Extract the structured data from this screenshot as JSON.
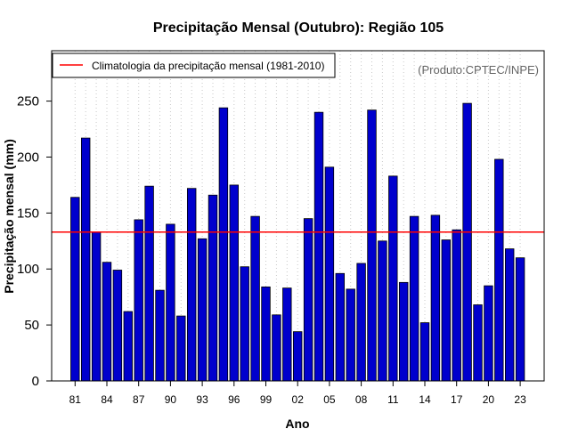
{
  "chart_data": {
    "type": "bar",
    "title": "Precipitação Mensal (Outubro): Região 105",
    "xlabel": "Ano",
    "ylabel": "Precipitação mensal (mm)",
    "ylim": [
      0,
      295
    ],
    "yticks": [
      0,
      50,
      100,
      150,
      200,
      250
    ],
    "categories": [
      "81",
      "82",
      "83",
      "84",
      "85",
      "86",
      "87",
      "88",
      "89",
      "90",
      "91",
      "92",
      "93",
      "94",
      "95",
      "96",
      "97",
      "98",
      "99",
      "00",
      "01",
      "02",
      "03",
      "04",
      "05",
      "06",
      "07",
      "08",
      "09",
      "10",
      "11",
      "12",
      "13",
      "14",
      "15",
      "16",
      "17",
      "18",
      "19",
      "20",
      "21",
      "22",
      "23"
    ],
    "values": [
      164,
      217,
      133,
      106,
      99,
      62,
      144,
      174,
      81,
      140,
      58,
      172,
      127,
      166,
      244,
      175,
      102,
      147,
      84,
      59,
      83,
      44,
      145,
      240,
      191,
      96,
      82,
      105,
      242,
      125,
      183,
      88,
      147,
      52,
      148,
      126,
      135,
      248,
      68,
      85,
      198,
      118,
      110
    ],
    "xtick_labels": [
      "81",
      "84",
      "87",
      "90",
      "93",
      "96",
      "99",
      "02",
      "05",
      "08",
      "11",
      "14",
      "17",
      "20",
      "23"
    ],
    "xtick_every": 3,
    "reference_line": {
      "value": 133,
      "label": "Climatologia da precipitação mensal (1981-2010)"
    },
    "bar_color": "#0000CD",
    "line_color": "#FF0000",
    "grid": "vertical-dotted",
    "legend_position": "top-left",
    "credit": "(Produto:CPTEC/INPE)"
  }
}
